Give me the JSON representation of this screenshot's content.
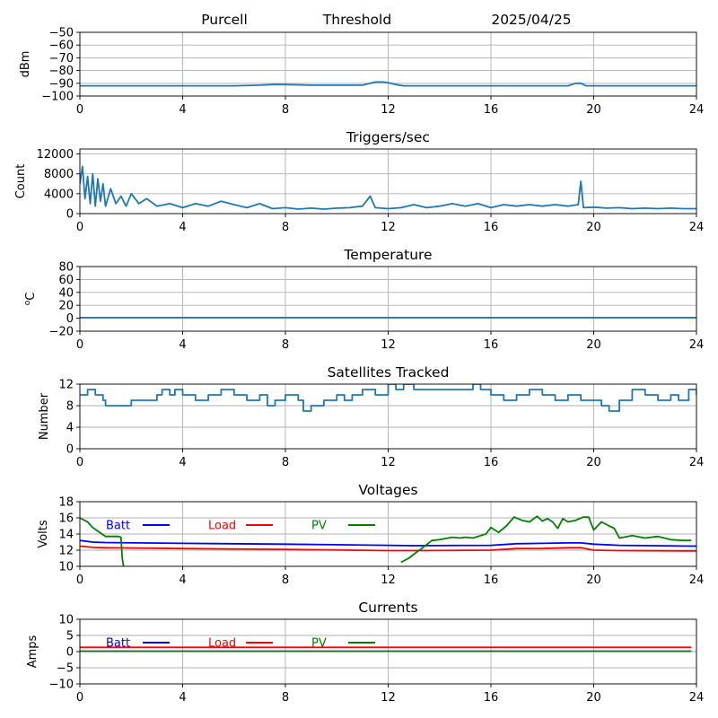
{
  "header": {
    "station": "Purcell",
    "mode": "Threshold",
    "date": "2025/04/25"
  },
  "colors": {
    "default_series": "#1f77b4",
    "batt": "#0000ff",
    "load": "#ff0000",
    "pv": "#008000",
    "grid": "#b0b0b0"
  },
  "chart_data": [
    {
      "id": "threshold",
      "type": "line",
      "title": "",
      "xlabel": "",
      "ylabel": "dBm",
      "xlim": [
        0,
        24
      ],
      "ylim": [
        -100,
        -50
      ],
      "xticks": [
        0,
        4,
        8,
        12,
        16,
        20,
        24
      ],
      "yticks": [
        -50,
        -60,
        -70,
        -80,
        -90,
        -100
      ],
      "grid": true,
      "series": [
        {
          "color": "#1f77b4",
          "x": [
            0,
            1,
            2,
            3,
            4,
            5,
            6,
            7,
            7.5,
            8,
            9,
            10,
            11,
            11.5,
            11.8,
            12,
            12.3,
            12.6,
            13,
            14,
            15,
            16,
            17,
            18,
            19,
            19.3,
            19.5,
            19.7,
            20,
            21,
            22,
            23,
            24
          ],
          "y": [
            -92,
            -92,
            -92,
            -92,
            -92,
            -92,
            -92,
            -91.5,
            -91,
            -91,
            -91.5,
            -91.5,
            -91.5,
            -89,
            -89,
            -89.5,
            -91,
            -92,
            -92,
            -92,
            -92,
            -92,
            -92,
            -92,
            -92,
            -90,
            -90,
            -92,
            -92,
            -92,
            -92,
            -92,
            -92
          ]
        }
      ]
    },
    {
      "id": "triggers",
      "type": "line",
      "title": "Triggers/sec",
      "xlabel": "",
      "ylabel": "Count",
      "xlim": [
        0,
        24
      ],
      "ylim": [
        0,
        13000
      ],
      "xticks": [
        0,
        4,
        8,
        12,
        16,
        20,
        24
      ],
      "yticks": [
        0,
        4000,
        8000,
        12000
      ],
      "grid": true,
      "series": [
        {
          "color": "#1f77b4",
          "x": [
            0,
            0.1,
            0.2,
            0.3,
            0.4,
            0.5,
            0.6,
            0.7,
            0.8,
            0.9,
            1.0,
            1.2,
            1.4,
            1.6,
            1.8,
            2.0,
            2.3,
            2.6,
            3.0,
            3.5,
            4.0,
            4.5,
            5.0,
            5.5,
            6.0,
            6.5,
            7.0,
            7.5,
            8.0,
            8.5,
            9.0,
            9.5,
            10.0,
            10.5,
            11.0,
            11.3,
            11.5,
            12.0,
            12.5,
            13.0,
            13.5,
            14.0,
            14.5,
            15.0,
            15.5,
            16.0,
            16.5,
            17.0,
            17.5,
            18.0,
            18.5,
            19.0,
            19.4,
            19.5,
            19.6,
            20.0,
            20.5,
            21.0,
            21.5,
            22.0,
            22.5,
            23.0,
            23.5,
            24
          ],
          "y": [
            6000,
            9500,
            3000,
            7500,
            2000,
            8000,
            1500,
            7000,
            2500,
            6000,
            1500,
            5000,
            2000,
            3500,
            1500,
            4000,
            2000,
            3000,
            1500,
            2000,
            1200,
            2000,
            1500,
            2500,
            1800,
            1200,
            2000,
            1000,
            1200,
            900,
            1100,
            900,
            1100,
            1200,
            1500,
            3500,
            1200,
            1000,
            1200,
            1800,
            1200,
            1500,
            2000,
            1500,
            2000,
            1200,
            1800,
            1500,
            1800,
            1500,
            1800,
            1500,
            1800,
            6500,
            1200,
            1300,
            1100,
            1200,
            1000,
            1100,
            1000,
            1100,
            1000,
            1000
          ]
        }
      ]
    },
    {
      "id": "temperature",
      "type": "line",
      "title": "Temperature",
      "xlabel": "",
      "ylabel": "oC",
      "xlim": [
        0,
        24
      ],
      "ylim": [
        -20,
        80
      ],
      "xticks": [
        0,
        4,
        8,
        12,
        16,
        20,
        24
      ],
      "yticks": [
        -20,
        0,
        20,
        40,
        60,
        80
      ],
      "grid": true,
      "series": [
        {
          "color": "#1f77b4",
          "x": [
            0,
            24
          ],
          "y": [
            1,
            1
          ]
        }
      ]
    },
    {
      "id": "satellites",
      "type": "line",
      "title": "Satellites Tracked",
      "xlabel": "",
      "ylabel": "Number",
      "xlim": [
        0,
        24
      ],
      "ylim": [
        0,
        12
      ],
      "xticks": [
        0,
        4,
        8,
        12,
        16,
        20,
        24
      ],
      "yticks": [
        0,
        4,
        8,
        12
      ],
      "grid": true,
      "step": true,
      "series": [
        {
          "color": "#1f77b4",
          "x": [
            0,
            0.3,
            0.6,
            0.9,
            1.0,
            1.2,
            2.0,
            2.5,
            3.0,
            3.2,
            3.5,
            3.7,
            4.0,
            4.5,
            5.0,
            5.5,
            6.0,
            6.5,
            7.0,
            7.3,
            7.6,
            8.0,
            8.5,
            8.7,
            9.0,
            9.5,
            10.0,
            10.3,
            10.6,
            11.0,
            11.5,
            12.0,
            12.3,
            12.6,
            13.0,
            14.0,
            15.0,
            15.3,
            15.6,
            16.0,
            16.5,
            17.0,
            17.5,
            18.0,
            18.5,
            19.0,
            19.5,
            20.0,
            20.3,
            20.6,
            21.0,
            21.5,
            22.0,
            22.5,
            23.0,
            23.3,
            23.7,
            24
          ],
          "y": [
            10,
            11,
            10,
            9,
            8,
            8,
            9,
            9,
            10,
            11,
            10,
            11,
            10,
            9,
            10,
            11,
            10,
            9,
            10,
            8,
            9,
            10,
            9,
            7,
            8,
            9,
            10,
            9,
            10,
            11,
            10,
            12,
            11,
            12,
            11,
            11,
            11,
            12,
            11,
            10,
            9,
            10,
            11,
            10,
            9,
            10,
            9,
            9,
            8,
            7,
            9,
            11,
            10,
            9,
            10,
            9,
            11,
            10
          ]
        }
      ]
    },
    {
      "id": "voltages",
      "type": "line",
      "title": "Voltages",
      "xlabel": "",
      "ylabel": "Volts",
      "xlim": [
        0,
        24
      ],
      "ylim": [
        10,
        18
      ],
      "xticks": [
        0,
        4,
        8,
        12,
        16,
        20,
        24
      ],
      "yticks": [
        10,
        12,
        14,
        16,
        18
      ],
      "grid": true,
      "legend": "top-left, in-plot",
      "series": [
        {
          "name": "Batt",
          "color": "#0000ff",
          "x": [
            0,
            0.5,
            1,
            4,
            8,
            12,
            13,
            16,
            17,
            18,
            19,
            19.5,
            20,
            21,
            24
          ],
          "y": [
            13.2,
            13.0,
            12.95,
            12.85,
            12.75,
            12.6,
            12.55,
            12.6,
            12.8,
            12.85,
            12.9,
            12.9,
            12.75,
            12.6,
            12.5
          ]
        },
        {
          "name": "Load",
          "color": "#ff0000",
          "x": [
            0,
            0.5,
            1,
            4,
            8,
            12,
            13,
            16,
            17,
            18,
            19,
            19.5,
            20,
            21,
            24
          ],
          "y": [
            12.5,
            12.35,
            12.3,
            12.2,
            12.1,
            11.95,
            11.95,
            12.0,
            12.2,
            12.2,
            12.3,
            12.3,
            12.0,
            11.95,
            11.9
          ]
        },
        {
          "name": "PV",
          "color": "#008000",
          "x": [
            0,
            0.3,
            0.5,
            1.0,
            1.5,
            1.6,
            1.65,
            1.7,
            12.4,
            12.5,
            12.8,
            13.0,
            13.3,
            13.7,
            14.0,
            14.5,
            14.8,
            15.0,
            15.3,
            15.6,
            15.8,
            16.0,
            16.3,
            16.6,
            16.9,
            17.2,
            17.5,
            17.8,
            18.0,
            18.2,
            18.4,
            18.6,
            18.8,
            19.0,
            19.3,
            19.6,
            19.8,
            20.0,
            20.3,
            20.6,
            20.8,
            21.0,
            21.5,
            22.0,
            22.5,
            23.0,
            23.5,
            23.8
          ],
          "y": [
            16.0,
            15.5,
            14.8,
            13.7,
            13.7,
            13.6,
            11.0,
            10.0,
            null,
            10.5,
            11.0,
            11.5,
            12.2,
            13.2,
            13.3,
            13.6,
            13.5,
            13.6,
            13.5,
            13.8,
            14.0,
            14.8,
            14.2,
            15.0,
            16.1,
            15.7,
            15.5,
            16.2,
            15.6,
            15.9,
            15.5,
            14.7,
            15.9,
            15.5,
            15.7,
            16.1,
            16.1,
            14.5,
            15.5,
            15.0,
            14.7,
            13.5,
            13.8,
            13.5,
            13.7,
            13.3,
            13.2,
            13.2
          ]
        }
      ]
    },
    {
      "id": "currents",
      "type": "line",
      "title": "Currents",
      "xlabel": "",
      "ylabel": "Amps",
      "xlim": [
        0,
        24
      ],
      "ylim": [
        -10,
        10
      ],
      "xticks": [
        0,
        4,
        8,
        12,
        16,
        20,
        24
      ],
      "yticks": [
        -10,
        -5,
        0,
        5,
        10
      ],
      "grid": true,
      "legend": "top-left, in-plot",
      "series": [
        {
          "name": "Batt",
          "color": "#0000ff",
          "x": [
            0,
            23.8
          ],
          "y": [
            0.1,
            0.1
          ]
        },
        {
          "name": "Load",
          "color": "#ff0000",
          "x": [
            0,
            23.8
          ],
          "y": [
            1.3,
            1.3
          ]
        },
        {
          "name": "PV",
          "color": "#008000",
          "x": [
            0,
            23.8
          ],
          "y": [
            0.1,
            0.1
          ]
        }
      ]
    }
  ]
}
